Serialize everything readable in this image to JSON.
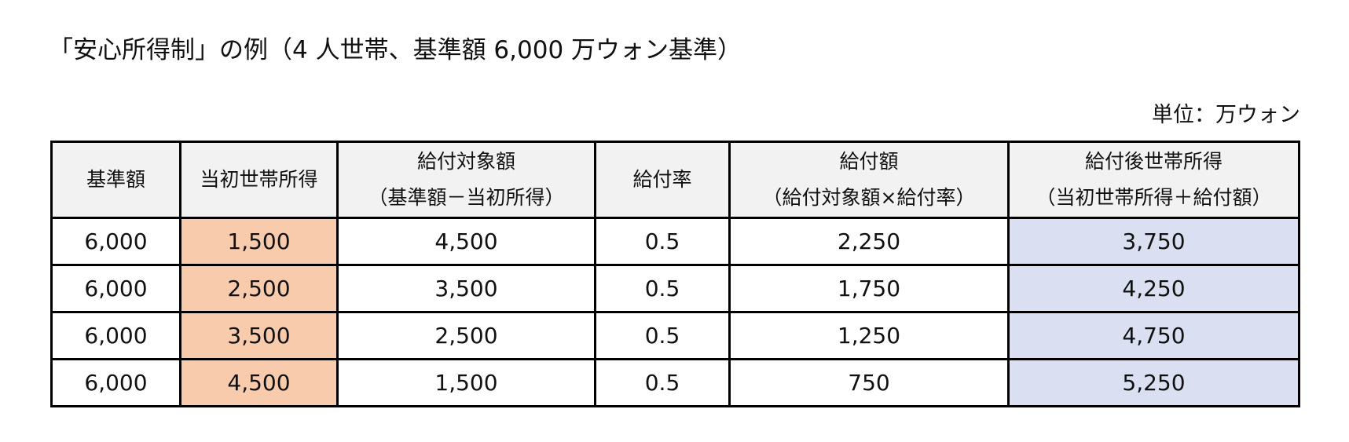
{
  "title": "「安心所得制」の例（4 人世帯、基準額 6,000 万ウォン基準）",
  "unit_label": "単位：万ウォン",
  "colors": {
    "initial_income_column": "#f8cbad",
    "after_income_column": "#dae0f2",
    "header_background": "#f2f2f2"
  },
  "table": {
    "headers": [
      {
        "line1": "基準額",
        "line2": ""
      },
      {
        "line1": "当初世帯所得",
        "line2": ""
      },
      {
        "line1": "給付対象額",
        "line2": "（基準額－当初所得）"
      },
      {
        "line1": "給付率",
        "line2": ""
      },
      {
        "line1": "給付額",
        "line2": "（給付対象額×給付率）"
      },
      {
        "line1": "給付後世帯所得",
        "line2": "（当初世帯所得＋給付額）"
      }
    ],
    "rows": [
      [
        "6,000",
        "1,500",
        "4,500",
        "0.5",
        "2,250",
        "3,750"
      ],
      [
        "6,000",
        "2,500",
        "3,500",
        "0.5",
        "1,750",
        "4,250"
      ],
      [
        "6,000",
        "3,500",
        "2,500",
        "0.5",
        "1,250",
        "4,750"
      ],
      [
        "6,000",
        "4,500",
        "1,500",
        "0.5",
        "750",
        "5,250"
      ]
    ]
  }
}
